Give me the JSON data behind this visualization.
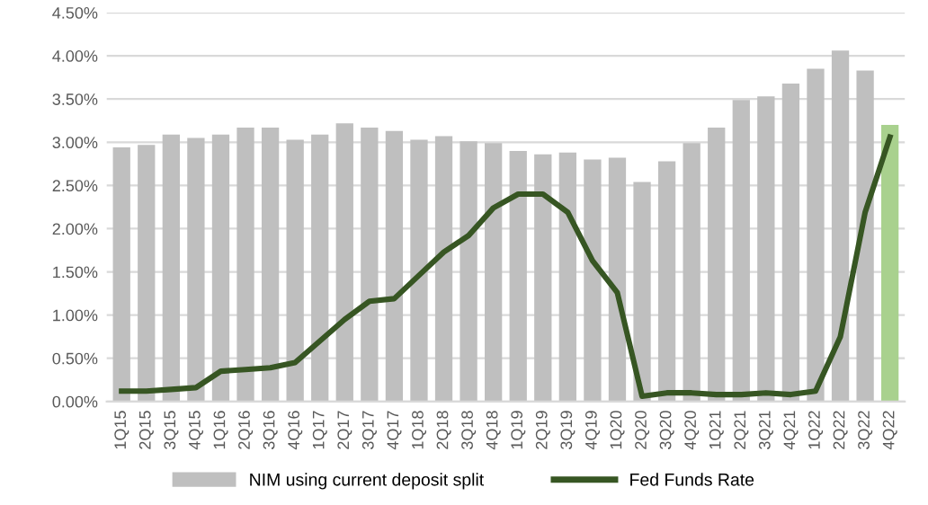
{
  "chart_data": {
    "type": "bar",
    "categories": [
      "1Q15",
      "2Q15",
      "3Q15",
      "4Q15",
      "1Q16",
      "2Q16",
      "3Q16",
      "4Q16",
      "1Q17",
      "2Q17",
      "3Q17",
      "4Q17",
      "1Q18",
      "2Q18",
      "3Q18",
      "4Q18",
      "1Q19",
      "2Q19",
      "3Q19",
      "4Q19",
      "1Q20",
      "2Q20",
      "3Q20",
      "4Q20",
      "1Q21",
      "2Q21",
      "3Q21",
      "4Q21",
      "1Q22",
      "2Q22",
      "3Q22",
      "4Q22"
    ],
    "series": [
      {
        "name": "NIM using current deposit split",
        "color": "#bfbfbf",
        "colors": [
          "#bfbfbf",
          "#bfbfbf",
          "#bfbfbf",
          "#bfbfbf",
          "#bfbfbf",
          "#bfbfbf",
          "#bfbfbf",
          "#bfbfbf",
          "#bfbfbf",
          "#bfbfbf",
          "#bfbfbf",
          "#bfbfbf",
          "#bfbfbf",
          "#bfbfbf",
          "#bfbfbf",
          "#bfbfbf",
          "#bfbfbf",
          "#bfbfbf",
          "#bfbfbf",
          "#bfbfbf",
          "#bfbfbf",
          "#bfbfbf",
          "#bfbfbf",
          "#bfbfbf",
          "#bfbfbf",
          "#bfbfbf",
          "#bfbfbf",
          "#bfbfbf",
          "#bfbfbf",
          "#bfbfbf",
          "#bfbfbf",
          "#a9d18e"
        ],
        "values": [
          2.94,
          2.97,
          3.09,
          3.05,
          3.09,
          3.17,
          3.17,
          3.03,
          3.09,
          3.22,
          3.17,
          3.13,
          3.03,
          3.07,
          3.01,
          2.99,
          2.9,
          2.86,
          2.88,
          2.8,
          2.82,
          2.54,
          2.78,
          2.99,
          3.17,
          3.49,
          3.53,
          3.68,
          3.85,
          4.06,
          3.83,
          3.2
        ]
      },
      {
        "type": "line",
        "name": "Fed Funds Rate",
        "color": "#375623",
        "values": [
          0.12,
          0.12,
          0.14,
          0.16,
          0.35,
          0.37,
          0.39,
          0.45,
          0.7,
          0.95,
          1.16,
          1.19,
          1.46,
          1.73,
          1.92,
          2.24,
          2.4,
          2.4,
          2.19,
          1.63,
          1.26,
          0.06,
          0.1,
          0.1,
          0.08,
          0.08,
          0.1,
          0.08,
          0.12,
          0.75,
          2.19,
          3.06
        ]
      }
    ],
    "ylim": [
      0,
      4.5
    ],
    "yticks": [
      {
        "value": 0,
        "label": "0.00%"
      },
      {
        "value": 0.5,
        "label": "0.50%"
      },
      {
        "value": 1,
        "label": "1.00%"
      },
      {
        "value": 1.5,
        "label": "1.50%"
      },
      {
        "value": 2,
        "label": "2.00%"
      },
      {
        "value": 2.5,
        "label": "2.50%"
      },
      {
        "value": 3,
        "label": "3.00%"
      },
      {
        "value": 3.5,
        "label": "3.50%"
      },
      {
        "value": 4,
        "label": "4.00%"
      },
      {
        "value": 4.5,
        "label": "4.50%"
      }
    ],
    "grid": "y",
    "legend": "bottom",
    "marker": "none",
    "line_style": "solid"
  }
}
